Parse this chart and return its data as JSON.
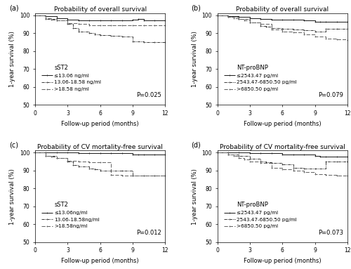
{
  "panels": [
    {
      "label": "(a)",
      "title": "Probability of overall survival",
      "ylabel": "1-year survival (%)",
      "xlabel": "Follow-up period (months)",
      "legend_title": "sST2",
      "pvalue": "P=0.025",
      "ylim": [
        50,
        101
      ],
      "yticks": [
        50,
        60,
        70,
        80,
        90,
        100
      ],
      "curves": [
        {
          "label": "≤13.06 ng/ml",
          "linestyle": "solid",
          "marker": "+",
          "color": "#222222",
          "x": [
            0,
            1,
            2,
            3,
            4,
            5,
            6,
            7,
            8,
            9,
            9.5,
            10,
            11,
            12
          ],
          "y": [
            100,
            99.5,
            98.5,
            97.5,
            97,
            97,
            97,
            97,
            97,
            97.5,
            98,
            97,
            97,
            97
          ]
        },
        {
          "label": "13.06-18.58 ng/ml",
          "linestyle": "dashdot",
          "marker": "+",
          "color": "#444444",
          "x": [
            0,
            1,
            2,
            3,
            3.5,
            4,
            5,
            5.5,
            6,
            7,
            8,
            9,
            10,
            11,
            12
          ],
          "y": [
            100,
            98,
            97,
            95,
            93,
            91,
            90,
            89.5,
            89,
            88.5,
            88,
            85.5,
            85,
            85,
            85
          ]
        },
        {
          "label": ">18.58 ng/ml",
          "linestyle": "dashed",
          "marker": "+",
          "color": "#666666",
          "x": [
            0,
            1,
            1.5,
            2,
            3,
            4,
            5,
            6,
            7,
            8,
            9,
            10,
            11,
            12
          ],
          "y": [
            100,
            98.5,
            97.5,
            97,
            95.5,
            95,
            94.5,
            94.5,
            94.5,
            94.5,
            94.5,
            94.5,
            94.5,
            94.5
          ]
        }
      ]
    },
    {
      "label": "(b)",
      "title": "Probability of overall survival",
      "ylabel": "1-year survival (%)",
      "xlabel": "Follow-up period (months)",
      "legend_title": "NT-proBNP",
      "pvalue": "P=0.079",
      "ylim": [
        50,
        101
      ],
      "yticks": [
        50,
        60,
        70,
        80,
        90,
        100
      ],
      "curves": [
        {
          "label": "≤2543.47 pg/ml",
          "linestyle": "solid",
          "marker": "+",
          "color": "#222222",
          "x": [
            0,
            1,
            2,
            3,
            4,
            5,
            6,
            7,
            8,
            9,
            9.5,
            10,
            11,
            12
          ],
          "y": [
            100,
            99.5,
            99,
            98.5,
            98,
            97.5,
            97.5,
            97.5,
            97,
            96.5,
            96.5,
            96.5,
            96.5,
            96.5
          ]
        },
        {
          "label": "2543.47-6850.50 pg/ml",
          "linestyle": "dashdot",
          "marker": "+",
          "color": "#444444",
          "x": [
            0,
            1,
            2,
            3,
            4,
            4.5,
            5,
            6,
            7,
            8,
            9,
            10,
            11,
            12
          ],
          "y": [
            100,
            99,
            98,
            96,
            94,
            93.5,
            93,
            92.5,
            92,
            91.5,
            91,
            92.5,
            92.5,
            92.5
          ]
        },
        {
          "label": ">6850.50 pg/ml",
          "linestyle": "dashed",
          "marker": "+",
          "color": "#666666",
          "x": [
            0,
            1,
            1.5,
            2,
            2.5,
            3,
            4,
            5,
            6,
            7,
            8,
            9,
            10,
            11,
            12
          ],
          "y": [
            100,
            99,
            98.5,
            98,
            97,
            96,
            95,
            92,
            91,
            90.5,
            89.5,
            88,
            87,
            86.5,
            86
          ]
        }
      ]
    },
    {
      "label": "(c)",
      "title": "Probability of CV mortality-free survival",
      "ylabel": "1-year survival (%)",
      "xlabel": "Follow-up period (months)",
      "legend_title": "sST2",
      "pvalue": "P=0.012",
      "ylim": [
        50,
        101
      ],
      "yticks": [
        50,
        60,
        70,
        80,
        90,
        100
      ],
      "curves": [
        {
          "label": "≤13.06ng/ml",
          "linestyle": "solid",
          "marker": "+",
          "color": "#222222",
          "x": [
            0,
            1,
            2,
            3,
            4,
            5,
            6,
            7,
            8,
            9,
            9.5,
            10,
            11,
            12
          ],
          "y": [
            100,
            100,
            100,
            100,
            99.5,
            99.5,
            99.5,
            99.5,
            99.5,
            99,
            99,
            99,
            99,
            99
          ]
        },
        {
          "label": "13.06-18.58ng/ml",
          "linestyle": "dashdot",
          "marker": "+",
          "color": "#444444",
          "x": [
            0,
            1,
            2,
            3,
            3.5,
            4,
            5,
            5.5,
            6,
            7,
            8,
            9,
            10,
            11,
            12
          ],
          "y": [
            100,
            98,
            97,
            95,
            93,
            92,
            91,
            90.5,
            90,
            90,
            90,
            87,
            87,
            87,
            87
          ]
        },
        {
          "label": ">18.58ng/ml",
          "linestyle": "dashed",
          "marker": "+",
          "color": "#666666",
          "x": [
            0,
            1,
            1.5,
            2,
            3,
            4,
            5,
            6,
            7,
            8,
            9,
            10,
            11,
            12
          ],
          "y": [
            100,
            98,
            97.5,
            97,
            95.5,
            95,
            94.5,
            94.5,
            87.5,
            87,
            87,
            87,
            87,
            87
          ]
        }
      ]
    },
    {
      "label": "(d)",
      "title": "Probability of CV mortality-free survival",
      "ylabel": "1-year survival (%)",
      "xlabel": "Follow-up period (months)",
      "legend_title": "NT-proBNP",
      "pvalue": "P=0.073",
      "ylim": [
        50,
        101
      ],
      "yticks": [
        50,
        60,
        70,
        80,
        90,
        100
      ],
      "curves": [
        {
          "label": "≤2543.47 pg/ml",
          "linestyle": "solid",
          "marker": "+",
          "color": "#222222",
          "x": [
            0,
            1,
            2,
            3,
            4,
            5,
            6,
            7,
            8,
            9,
            9.5,
            10,
            11,
            12
          ],
          "y": [
            100,
            100,
            100,
            99.5,
            99.5,
            99.5,
            99,
            99,
            99,
            98,
            97.5,
            97.5,
            97.5,
            97.5
          ]
        },
        {
          "label": "2543.47-6850.50 pg/ml",
          "linestyle": "dashdot",
          "marker": "+",
          "color": "#444444",
          "x": [
            0,
            1,
            2,
            3,
            4,
            4.5,
            5,
            6,
            7,
            8,
            9,
            10,
            11,
            12
          ],
          "y": [
            100,
            99,
            98,
            96.5,
            95,
            94.5,
            94,
            93.5,
            91.5,
            91,
            91,
            95,
            95,
            95
          ]
        },
        {
          "label": ">6850.50 pg/ml",
          "linestyle": "dashed",
          "marker": "+",
          "color": "#666666",
          "x": [
            0,
            1,
            1.5,
            2,
            2.5,
            3,
            4,
            5,
            6,
            7,
            8,
            9,
            10,
            11,
            12
          ],
          "y": [
            100,
            99,
            98,
            97,
            96,
            95,
            94,
            91.5,
            90.5,
            90,
            89,
            88,
            87.5,
            87,
            87
          ]
        }
      ]
    }
  ],
  "figure_bg": "#ffffff",
  "axes_bg": "#ffffff",
  "font_size": 6.0,
  "title_font_size": 6.5,
  "legend_font_size": 5.2,
  "tick_font_size": 5.5,
  "legend_title_fontsize": 6.0
}
